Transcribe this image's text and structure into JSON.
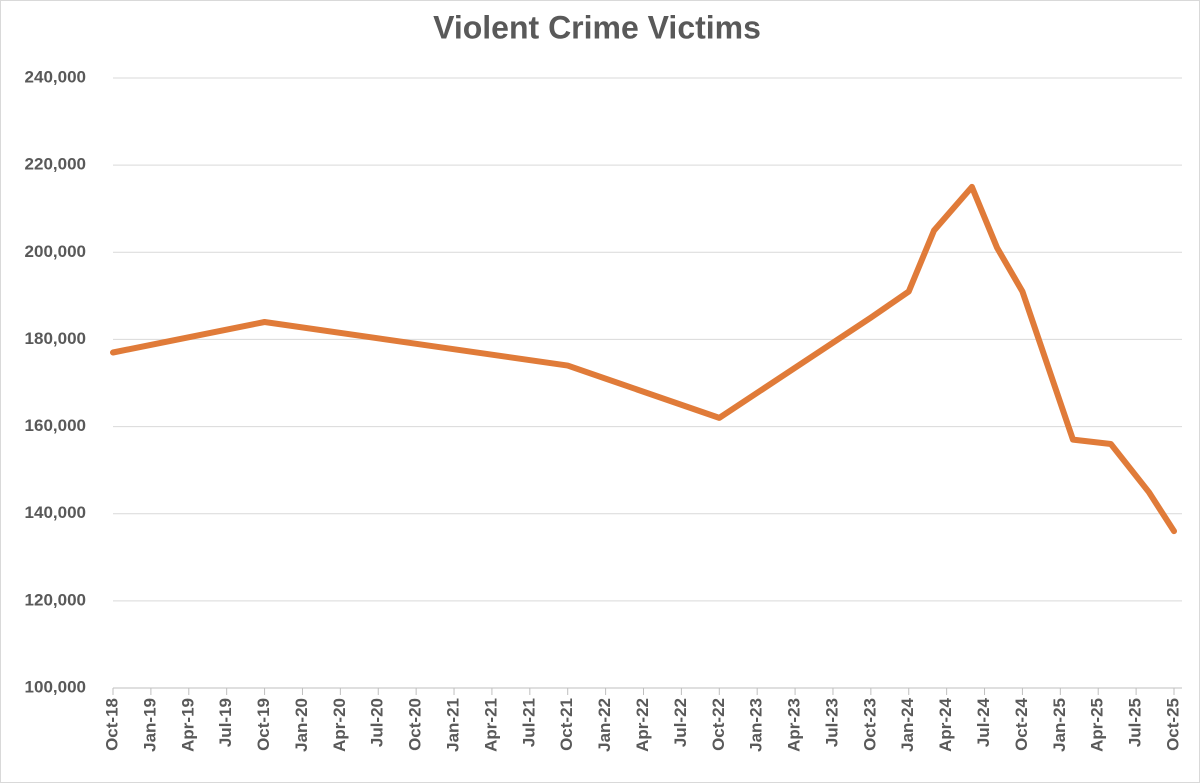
{
  "chart_data": {
    "type": "line",
    "title": "Violent Crime Victims",
    "x": [
      "Oct-18",
      "Oct-19",
      "Oct-21",
      "Oct-22",
      "Oct-23",
      "Jan-24",
      "Mar-24",
      "Jun-24",
      "Aug-24",
      "Oct-24",
      "Feb-25",
      "May-25",
      "Aug-25",
      "Oct-25"
    ],
    "series": [
      {
        "name": "Violent Crime Victims",
        "color": "#e07b39",
        "values": [
          177000,
          184000,
          174000,
          162000,
          185000,
          191000,
          205000,
          215000,
          201000,
          191000,
          157000,
          156000,
          145000,
          136000
        ]
      }
    ],
    "xticks": [
      "Oct-18",
      "Jan-19",
      "Apr-19",
      "Jul-19",
      "Oct-19",
      "Jan-20",
      "Apr-20",
      "Jul-20",
      "Oct-20",
      "Jan-21",
      "Apr-21",
      "Jul-21",
      "Oct-21",
      "Jan-22",
      "Apr-22",
      "Jul-22",
      "Oct-22",
      "Jan-23",
      "Apr-23",
      "Jul-23",
      "Oct-23",
      "Jan-24",
      "Apr-24",
      "Jul-24",
      "Oct-24",
      "Jan-25",
      "Apr-25",
      "Jul-25",
      "Oct-25"
    ],
    "ylim": [
      100000,
      240000
    ],
    "yticks": [
      {
        "value": 100000,
        "label": "100,000"
      },
      {
        "value": 120000,
        "label": "120,000"
      },
      {
        "value": 140000,
        "label": "140,000"
      },
      {
        "value": 160000,
        "label": "160,000"
      },
      {
        "value": 180000,
        "label": "180,000"
      },
      {
        "value": 200000,
        "label": "200,000"
      },
      {
        "value": 220000,
        "label": "220,000"
      },
      {
        "value": 240000,
        "label": "240,000"
      }
    ],
    "grid": true
  }
}
